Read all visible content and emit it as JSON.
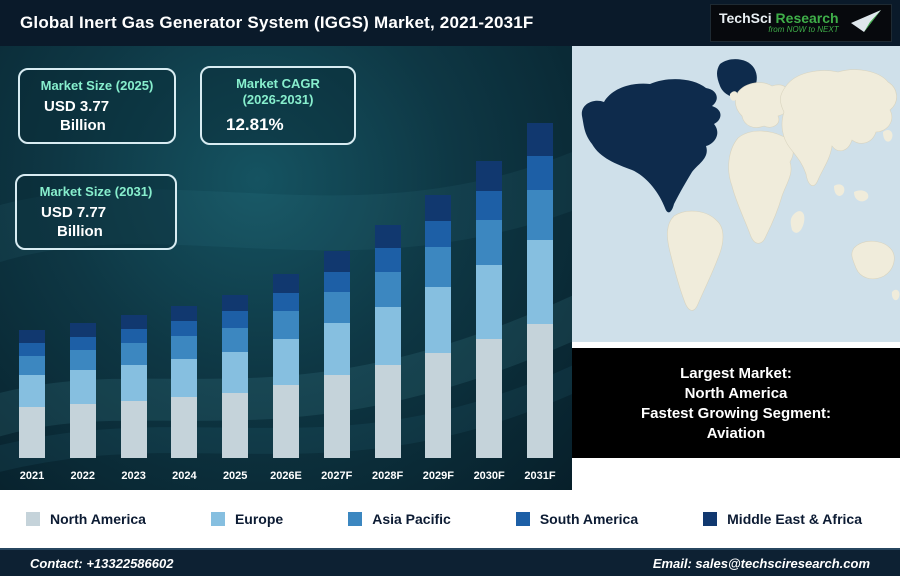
{
  "header": {
    "title": "Global Inert Gas Generator System (IGGS) Market, 2021-2031F",
    "logo": {
      "brand_primary": "TechSci",
      "brand_secondary": "Research",
      "tagline": "from NOW to NEXT"
    }
  },
  "stats": {
    "box1": {
      "label": "Market Size (2025)",
      "value": "USD 3.77",
      "unit": "Billion"
    },
    "box2": {
      "label_line1": "Market CAGR",
      "label_line2": "(2026-2031)",
      "value": "12.81%"
    },
    "box3": {
      "label": "Market Size (2031)",
      "value": "USD 7.77",
      "unit": "Billion"
    }
  },
  "highlight": {
    "line1": "Largest Market:",
    "line2": "North America",
    "line3": "Fastest Growing Segment:",
    "line4": "Aviation"
  },
  "map": {
    "highlighted_region": "North America",
    "ocean_color": "#cfe0ea",
    "land_color": "#f0ecdb",
    "highlight_color": "#0e2b4c"
  },
  "footer": {
    "contact": "Contact: +13322586602",
    "email": "Email: sales@techsciresearch.com"
  },
  "chart_data": {
    "type": "bar",
    "stacked": true,
    "title": "Global Inert Gas Generator System (IGGS) Market, 2021-2031F",
    "unit": "USD Billion",
    "categories": [
      "2021",
      "2022",
      "2023",
      "2024",
      "2025",
      "2026E",
      "2027F",
      "2028F",
      "2029F",
      "2030F",
      "2031F"
    ],
    "series": [
      {
        "name": "North America",
        "color": "#c5d3da",
        "values": [
          1.18,
          1.25,
          1.33,
          1.41,
          1.51,
          1.7,
          1.92,
          2.16,
          2.44,
          2.76,
          3.11
        ]
      },
      {
        "name": "Europe",
        "color": "#86bfe0",
        "values": [
          0.74,
          0.78,
          0.83,
          0.88,
          0.94,
          1.06,
          1.2,
          1.35,
          1.53,
          1.72,
          1.94
        ]
      },
      {
        "name": "Asia Pacific",
        "color": "#3c87c0",
        "values": [
          0.44,
          0.47,
          0.5,
          0.53,
          0.57,
          0.64,
          0.72,
          0.81,
          0.92,
          1.03,
          1.17
        ]
      },
      {
        "name": "South America",
        "color": "#1d5fa6",
        "values": [
          0.3,
          0.31,
          0.33,
          0.35,
          0.38,
          0.43,
          0.48,
          0.54,
          0.61,
          0.69,
          0.78
        ]
      },
      {
        "name": "Middle East & Africa",
        "color": "#11386f",
        "values": [
          0.3,
          0.31,
          0.33,
          0.35,
          0.38,
          0.43,
          0.48,
          0.54,
          0.61,
          0.69,
          0.78
        ]
      }
    ],
    "totals": [
      2.95,
      3.13,
      3.32,
      3.53,
      3.77,
      4.25,
      4.8,
      5.41,
      6.11,
      6.89,
      7.77
    ],
    "annotations": [
      "Market Size (2025): USD 3.77 Billion",
      "Market CAGR (2026-2031): 12.81%",
      "Market Size (2031): USD 7.77 Billion"
    ],
    "xlabel": "",
    "ylabel": "USD Billion",
    "ylim": [
      0,
      8
    ],
    "grid": false,
    "legend_position": "bottom"
  }
}
